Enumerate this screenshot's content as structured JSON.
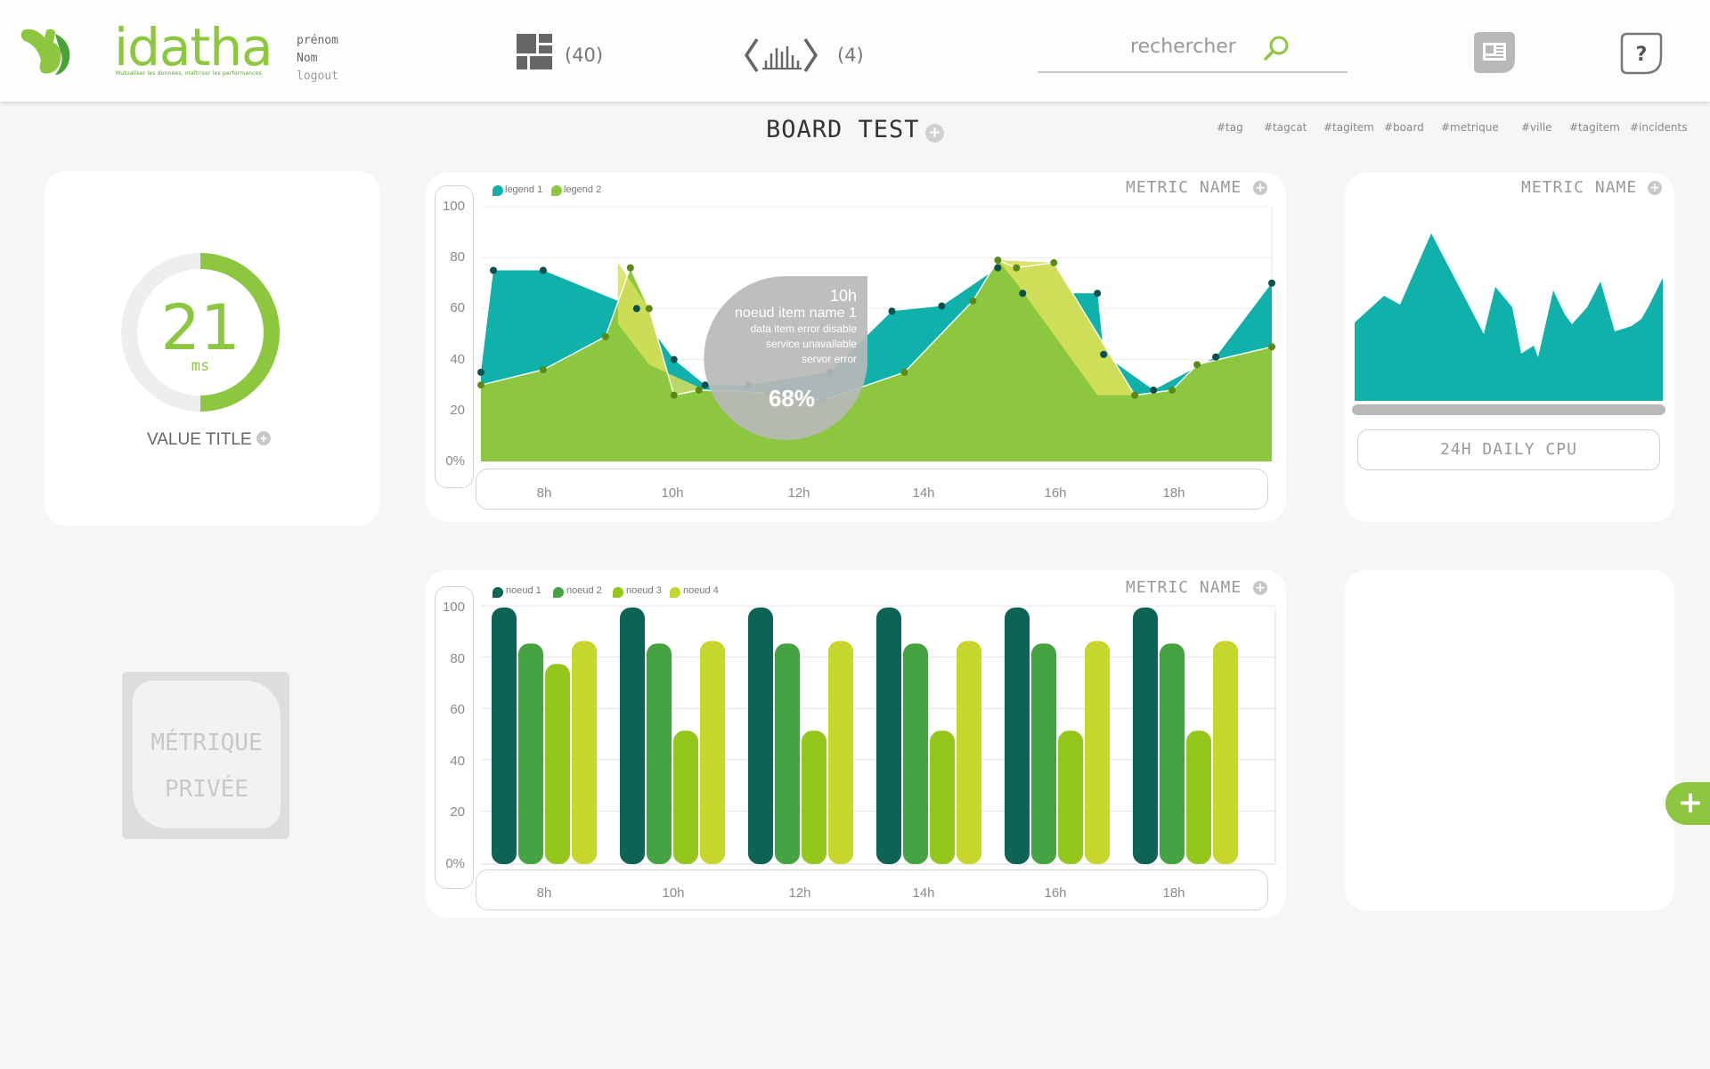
{
  "header": {
    "brand": "idatha",
    "tagline": "Mutualiser les données, maîtriser les performances",
    "user_firstname": "prénom",
    "user_lastname": "Nom",
    "logout": "logout",
    "boards_count": "(40)",
    "apis_count": "(4)",
    "search_placeholder": "rechercher"
  },
  "board": {
    "title": "BOARD TEST",
    "tags": [
      "#tag",
      "#tagcat",
      "#tagitem",
      "#board",
      "#metrique",
      "#ville",
      "#tagitem",
      "#incidents"
    ]
  },
  "gauge_card": {
    "value": "21",
    "unit": "ms",
    "fraction": 0.5,
    "title": "VALUE TITLE"
  },
  "private_card": {
    "line1": "MÉTRIQUE",
    "line2": "PRIVÉE"
  },
  "cpu_card": {
    "metric_name": "METRIC NAME",
    "label": "24H DAILY CPU"
  },
  "colors": {
    "green": "#8dc63f",
    "teal": "#0fb1aa",
    "lime": "#d6e05c",
    "dark_green": "#0b6456",
    "mid_green": "#45a342",
    "bright_green": "#94c71b",
    "yellow_green": "#c6d62c"
  },
  "chart_data": [
    {
      "type": "area",
      "metric_name": "METRIC NAME",
      "categories": [
        "8h",
        "10h",
        "12h",
        "14h",
        "16h",
        "18h"
      ],
      "y_ticks": [
        "0%",
        "20",
        "40",
        "60",
        "80",
        "100"
      ],
      "ylim": [
        0,
        100
      ],
      "legend": [
        "legend 1",
        "legend 2"
      ],
      "series": [
        {
          "name": "legend 1",
          "x": [
            7.0,
            7.2,
            8.0,
            9.5,
            10.1,
            10.6,
            11.3,
            12.6,
            13.6,
            14.4,
            15.3,
            15.7,
            16.9,
            17.0,
            17.8,
            18.8,
            19.7
          ],
          "values": [
            35,
            75,
            75,
            60,
            40,
            30,
            30,
            35,
            59,
            61,
            76,
            66,
            66,
            42,
            28,
            41,
            70
          ]
        },
        {
          "name": "legend 2",
          "x": [
            7.0,
            8.0,
            9.0,
            9.4,
            9.7,
            10.1,
            10.5,
            11.6,
            12.5,
            13.8,
            14.9,
            15.3,
            15.6,
            16.2,
            17.5,
            18.1,
            18.5,
            19.7
          ],
          "values": [
            30,
            36,
            49,
            76,
            60,
            26,
            28,
            27,
            24,
            35,
            63,
            79,
            76,
            78,
            26,
            28,
            38,
            45
          ]
        }
      ],
      "tooltip": {
        "time": "10h",
        "name": "noeud item name 1",
        "lines": [
          "data  item  error disable",
          "service unavailable",
          "servor error"
        ],
        "value": "68%"
      }
    },
    {
      "type": "area",
      "series": [
        {
          "name": "",
          "values": [
            30,
            36,
            41,
            82,
            68,
            52,
            30,
            18,
            4,
            41,
            27,
            18,
            14,
            49,
            33,
            28,
            44,
            35,
            32,
            45,
            41,
            56
          ]
        }
      ]
    },
    {
      "type": "bar",
      "metric_name": "METRIC NAME",
      "categories": [
        "8h",
        "10h",
        "12h",
        "14h",
        "16h",
        "18h"
      ],
      "y_ticks": [
        "0%",
        "20",
        "40",
        "60",
        "80",
        "100"
      ],
      "ylim": [
        0,
        100
      ],
      "series": [
        {
          "name": "noeud 1",
          "values": [
            100,
            100,
            100,
            100,
            100,
            100
          ]
        },
        {
          "name": "noeud 2",
          "values": [
            86,
            86,
            86,
            86,
            86,
            86
          ]
        },
        {
          "name": "noeud 3",
          "values": [
            78,
            52,
            52,
            52,
            52,
            52
          ]
        },
        {
          "name": "noeud 4",
          "values": [
            87,
            87,
            87,
            87,
            87,
            87
          ]
        }
      ]
    }
  ]
}
